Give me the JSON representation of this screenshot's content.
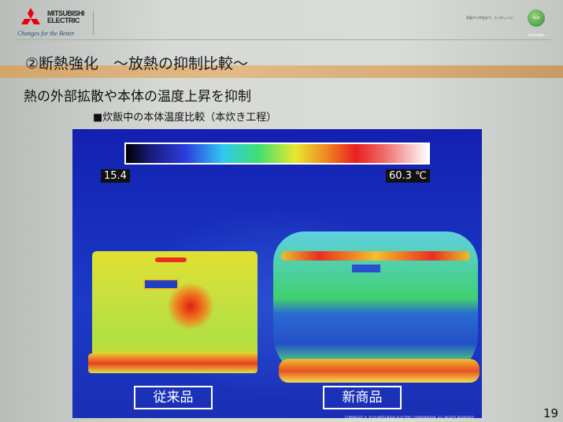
{
  "header": {
    "brand_lines": [
      "MITSUBISHI",
      "ELECTRIC"
    ],
    "tagline": "Changes for the Better",
    "eco_slogan": "家庭から宇宙まで、エコチェンジ",
    "eco_logo": "eco changes"
  },
  "slide": {
    "title": "②断熱強化　～放熱の抑制比較～",
    "subtitle": "熱の外部拡散や本体の温度上昇を抑制",
    "caption": "■炊飯中の本体温度比較（本炊き工程）"
  },
  "thermal": {
    "scale_min": "15.4",
    "scale_max": "60.3 ℃",
    "label_left": "従来品",
    "label_right": "新商品"
  },
  "footer": {
    "copyright": "COPYRIGHT © 2014 MITSUBISHI ELECTRIC CORPORATION. ALL RIGHTS RESERVED",
    "page_number": "19"
  }
}
